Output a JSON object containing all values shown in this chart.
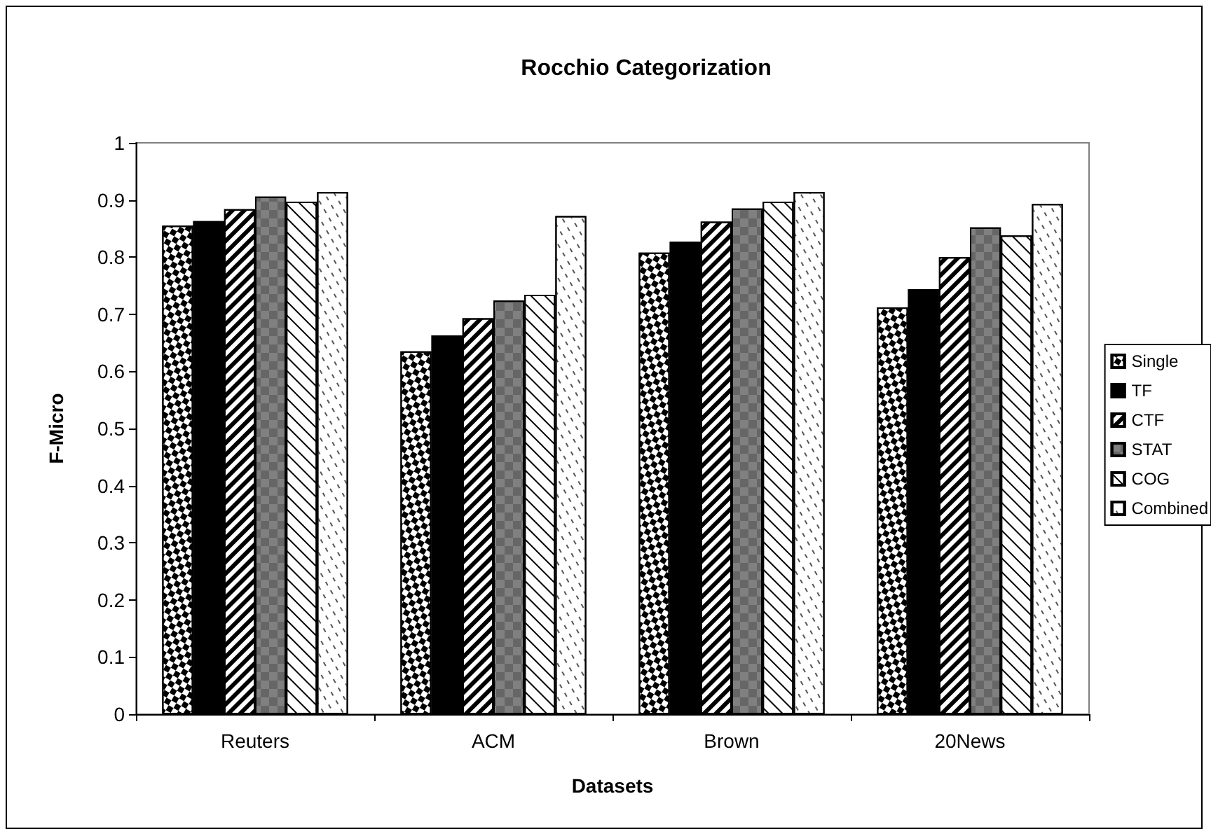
{
  "chart_data": {
    "type": "bar",
    "title": "Rocchio Categorization",
    "xlabel": "Datasets",
    "ylabel": "F-Micro",
    "categories": [
      "Reuters",
      "ACM",
      "Brown",
      "20News"
    ],
    "series": [
      {
        "name": "Single",
        "color": "#ffffff",
        "values": [
          0.855,
          0.635,
          0.808,
          0.712
        ]
      },
      {
        "name": "TF",
        "color": "#000000",
        "values": [
          0.863,
          0.663,
          0.827,
          0.744
        ]
      },
      {
        "name": "CTF",
        "color": "#ffffff",
        "values": [
          0.884,
          0.693,
          0.862,
          0.8
        ]
      },
      {
        "name": "STAT",
        "color": "#808080",
        "values": [
          0.906,
          0.724,
          0.885,
          0.852
        ]
      },
      {
        "name": "COG",
        "color": "#ffffff",
        "values": [
          0.897,
          0.734,
          0.897,
          0.838
        ]
      },
      {
        "name": "Combined",
        "color": "#ffffff",
        "values": [
          0.914,
          0.872,
          0.914,
          0.893
        ]
      }
    ],
    "ylim": [
      0,
      1
    ],
    "yticks": [
      0,
      0.1,
      0.2,
      0.3,
      0.4,
      0.5,
      0.6,
      0.7,
      0.8,
      0.9,
      1
    ],
    "grid": false,
    "legend": "right"
  }
}
